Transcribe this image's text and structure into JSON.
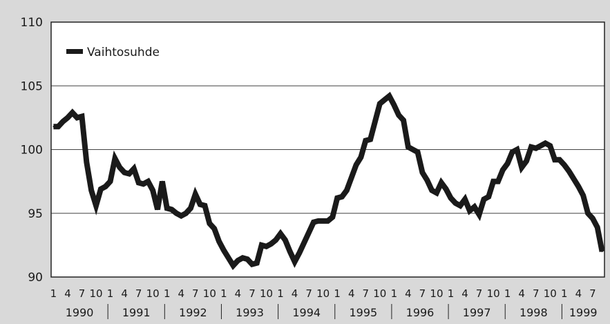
{
  "chart_data": {
    "type": "line",
    "title": "",
    "xlabel": "",
    "ylabel": "",
    "ylim": [
      90,
      110
    ],
    "y_ticks": [
      "90",
      "95",
      "100",
      "105",
      "110"
    ],
    "grid": "horizontal",
    "legend_position": "top-left",
    "month_tick_labels": [
      "1",
      "4",
      "7",
      "10"
    ],
    "years": [
      "1990",
      "1991",
      "1992",
      "1993",
      "1994",
      "1995",
      "1996",
      "1997",
      "1998",
      "1999"
    ],
    "x_start": "1990-01",
    "x_end": "1999-09",
    "series": [
      {
        "name": "Vaihtosuhde",
        "color": "#1a1a1a",
        "values": [
          101.8,
          101.8,
          102.2,
          102.5,
          102.9,
          102.5,
          102.6,
          99.0,
          96.8,
          95.6,
          96.9,
          97.1,
          97.5,
          99.3,
          98.6,
          98.2,
          98.1,
          98.5,
          97.4,
          97.3,
          97.5,
          96.8,
          95.3,
          97.5,
          95.4,
          95.3,
          95.0,
          94.8,
          95.0,
          95.4,
          96.5,
          95.7,
          95.6,
          94.2,
          93.8,
          92.8,
          92.1,
          91.5,
          90.9,
          91.3,
          91.5,
          91.4,
          91.0,
          91.1,
          92.5,
          92.4,
          92.6,
          92.9,
          93.4,
          92.9,
          92.0,
          91.2,
          91.9,
          92.7,
          93.5,
          94.3,
          94.4,
          94.4,
          94.4,
          94.7,
          96.2,
          96.3,
          96.8,
          97.8,
          98.8,
          99.4,
          100.7,
          100.8,
          102.2,
          103.6,
          103.9,
          104.2,
          103.5,
          102.7,
          102.3,
          100.2,
          100.0,
          99.8,
          98.2,
          97.6,
          96.8,
          96.6,
          97.4,
          96.9,
          96.2,
          95.8,
          95.6,
          96.1,
          95.2,
          95.5,
          94.9,
          96.1,
          96.3,
          97.5,
          97.5,
          98.4,
          98.9,
          99.8,
          100.0,
          98.6,
          99.1,
          100.2,
          100.1,
          100.3,
          100.5,
          100.3,
          99.2,
          99.2,
          98.8,
          98.3,
          97.7,
          97.1,
          96.4,
          95.0,
          94.6,
          93.9,
          92.0
        ]
      }
    ]
  }
}
